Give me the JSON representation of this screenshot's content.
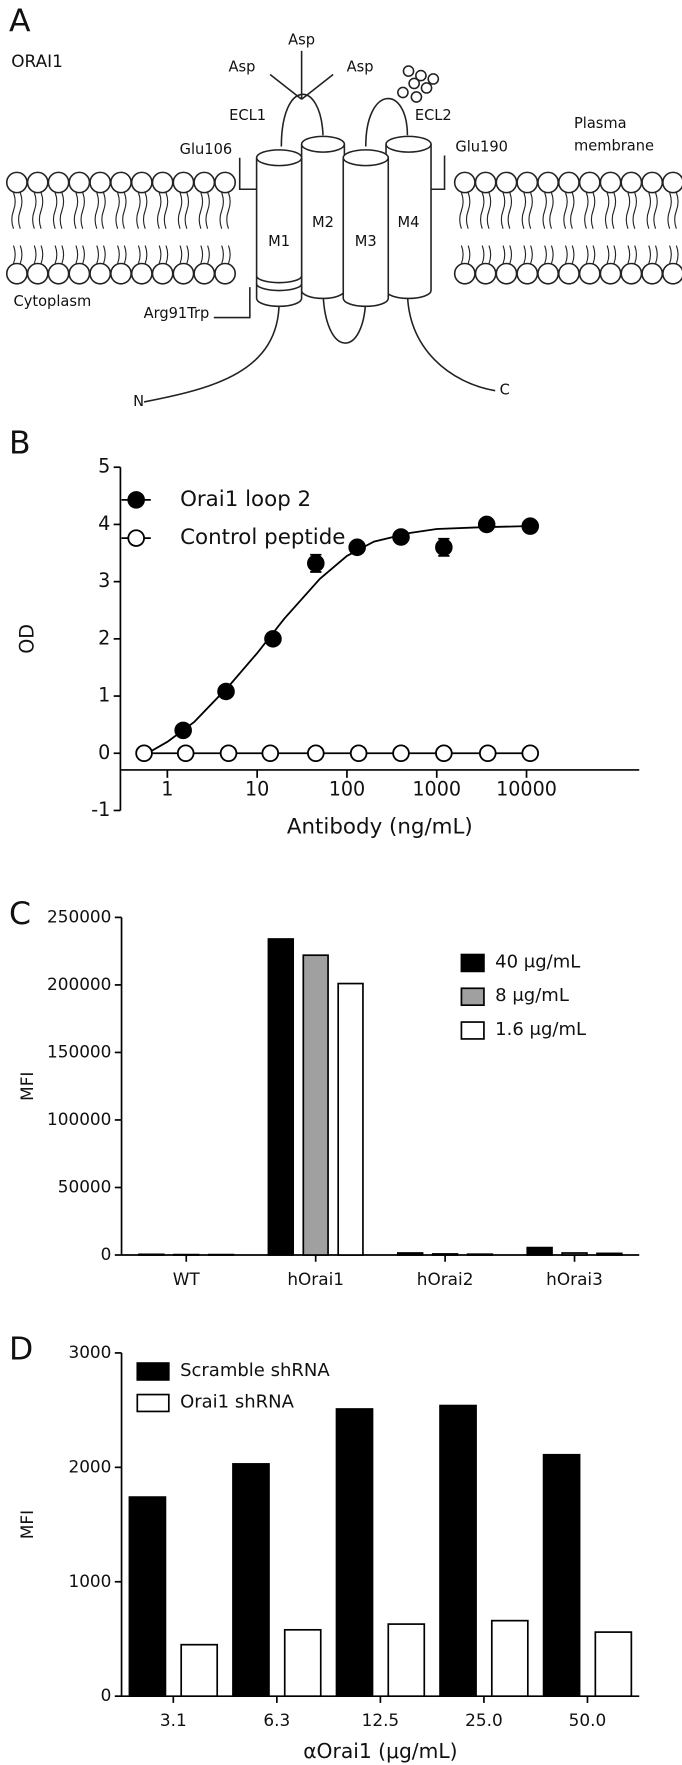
{
  "diagram": {
    "panel_label": "A",
    "protein": "ORAI1",
    "asp": [
      "Asp",
      "Asp",
      "Asp"
    ],
    "loops": [
      "ECL1",
      "ECL2"
    ],
    "residues": [
      "Glu106",
      "Glu190",
      "Arg91Trp"
    ],
    "membrane": [
      "Plasma",
      "membrane"
    ],
    "helices": [
      "M1",
      "M2",
      "M3",
      "M4"
    ],
    "cytoplasm": "Cytoplasm",
    "termini": [
      "N",
      "C"
    ]
  },
  "chart_data": [
    {
      "type": "scatter",
      "panel_label": "B",
      "x_label": "Antibody (ng/mL)",
      "y_label": "OD",
      "log_x": true,
      "legend": "upper-left",
      "xlim": [
        0.3,
        180000
      ],
      "xticks": [
        1,
        10,
        100,
        1000,
        10000
      ],
      "ylim": [
        -1,
        5
      ],
      "yticks": [
        -1,
        0,
        1,
        2,
        3,
        4,
        5
      ],
      "series": [
        {
          "name": "Orai1 loop 2",
          "color": "#000000",
          "filled": true,
          "x": [
            1.5,
            4.5,
            15,
            45,
            130,
            400,
            1200,
            3600,
            11000
          ],
          "values": [
            0.4,
            1.08,
            2.0,
            3.32,
            3.6,
            3.78,
            3.6,
            4.0,
            3.97
          ],
          "errors": [
            null,
            null,
            null,
            0.15,
            null,
            null,
            0.15,
            null,
            null
          ]
        },
        {
          "name": "Control peptide",
          "color": "#000000",
          "filled": false,
          "x": [
            0.55,
            1.6,
            4.8,
            14,
            45,
            135,
            400,
            1200,
            3700,
            11000
          ],
          "values": [
            0,
            0,
            0,
            0,
            0,
            0,
            0,
            0,
            0,
            0
          ]
        }
      ],
      "curve": {
        "x": [
          0.6,
          1,
          2,
          5,
          10,
          20,
          50,
          100,
          200,
          500,
          1000,
          3000,
          10000
        ],
        "values": [
          0.0,
          0.2,
          0.55,
          1.2,
          1.75,
          2.35,
          3.05,
          3.45,
          3.7,
          3.85,
          3.92,
          3.95,
          3.97
        ]
      }
    },
    {
      "type": "bar",
      "panel_label": "C",
      "y_label": "MFI",
      "legend": "upper-right",
      "categories": [
        "WT",
        "hOrai1",
        "hOrai2",
        "hOrai3"
      ],
      "ylim": [
        0,
        250000
      ],
      "yticks": [
        0,
        50000,
        100000,
        150000,
        200000,
        250000
      ],
      "series": [
        {
          "name": "40 μg/mL",
          "color": "#000000",
          "values": [
            500,
            234000,
            1500,
            5500
          ]
        },
        {
          "name": "8 μg/mL",
          "color": "#a0a0a0",
          "values": [
            300,
            222000,
            800,
            1500
          ]
        },
        {
          "name": "1.6 μg/mL",
          "color": "#ffffff",
          "values": [
            300,
            201000,
            600,
            1200
          ]
        }
      ]
    },
    {
      "type": "bar",
      "panel_label": "D",
      "x_label": "αOrai1 (μg/mL)",
      "y_label": "MFI",
      "legend": "upper-left",
      "categories": [
        "3.1",
        "6.3",
        "12.5",
        "25.0",
        "50.0"
      ],
      "ylim": [
        0,
        3000
      ],
      "yticks": [
        0,
        1000,
        2000,
        3000
      ],
      "series": [
        {
          "name": "Scramble shRNA",
          "color": "#000000",
          "values": [
            1740,
            2030,
            2510,
            2540,
            2110
          ]
        },
        {
          "name": "Orai1 shRNA",
          "color": "#ffffff",
          "values": [
            450,
            580,
            630,
            660,
            560
          ]
        }
      ]
    }
  ]
}
